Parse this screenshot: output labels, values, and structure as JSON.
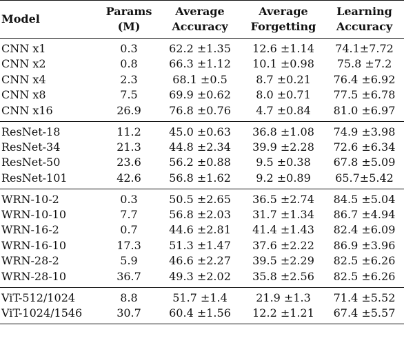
{
  "table": {
    "headers": {
      "model": "Model",
      "params_line1": "Params",
      "params_line2": "(M)",
      "acc_line1": "Average",
      "acc_line2": "Accuracy",
      "forg_line1": "Average",
      "forg_line2": "Forgetting",
      "learn_line1": "Learning",
      "learn_line2": "Accuracy"
    },
    "groups": [
      {
        "rows": [
          {
            "model": "CNN x1",
            "params": "0.3",
            "acc": "62.2 ±1.35",
            "forg": "12.6 ±1.14",
            "learn": "74.1±7.72"
          },
          {
            "model": "CNN x2",
            "params": "0.8",
            "acc": "66.3 ±1.12",
            "forg": "10.1 ±0.98",
            "learn": "75.8 ±7.2"
          },
          {
            "model": "CNN x4",
            "params": "2.3",
            "acc": "68.1 ±0.5",
            "forg": "8.7 ±0.21",
            "learn": "76.4 ±6.92"
          },
          {
            "model": "CNN x8",
            "params": "7.5",
            "acc": "69.9 ±0.62",
            "forg": "8.0 ±0.71",
            "learn": "77.5 ±6.78"
          },
          {
            "model": "CNN x16",
            "params": "26.9",
            "acc": "76.8 ±0.76",
            "forg": "4.7 ±0.84",
            "learn": "81.0 ±6.97"
          }
        ]
      },
      {
        "rows": [
          {
            "model": "ResNet-18",
            "params": "11.2",
            "acc": "45.0 ±0.63",
            "forg": "36.8 ±1.08",
            "learn": "74.9 ±3.98"
          },
          {
            "model": "ResNet-34",
            "params": "21.3",
            "acc": "44.8 ±2.34",
            "forg": "39.9 ±2.28",
            "learn": "72.6 ±6.34"
          },
          {
            "model": "ResNet-50",
            "params": "23.6",
            "acc": "56.2 ±0.88",
            "forg": "9.5 ±0.38",
            "learn": "67.8 ±5.09"
          },
          {
            "model": "ResNet-101",
            "params": "42.6",
            "acc": "56.8 ±1.62",
            "forg": "9.2 ±0.89",
            "learn": "65.7±5.42"
          }
        ]
      },
      {
        "rows": [
          {
            "model": "WRN-10-2",
            "params": "0.3",
            "acc": "50.5 ±2.65",
            "forg": "36.5 ±2.74",
            "learn": "84.5 ±5.04"
          },
          {
            "model": "WRN-10-10",
            "params": "7.7",
            "acc": "56.8 ±2.03",
            "forg": "31.7 ±1.34",
            "learn": "86.7 ±4.94"
          },
          {
            "model": "WRN-16-2",
            "params": "0.7",
            "acc": "44.6 ±2.81",
            "forg": "41.4 ±1.43",
            "learn": "82.4 ±6.09"
          },
          {
            "model": "WRN-16-10",
            "params": "17.3",
            "acc": "51.3 ±1.47",
            "forg": "37.6 ±2.22",
            "learn": "86.9 ±3.96"
          },
          {
            "model": "WRN-28-2",
            "params": "5.9",
            "acc": "46.6 ±2.27",
            "forg": "39.5 ±2.29",
            "learn": "82.5 ±6.26"
          },
          {
            "model": "WRN-28-10",
            "params": "36.7",
            "acc": "49.3 ±2.02",
            "forg": "35.8 ±2.56",
            "learn": "82.5 ±6.26"
          }
        ]
      },
      {
        "rows": [
          {
            "model": "ViT-512/1024",
            "params": "8.8",
            "acc": "51.7 ±1.4",
            "forg": "21.9 ±1.3",
            "learn": "71.4 ±5.52"
          },
          {
            "model": "ViT-1024/1546",
            "params": "30.7",
            "acc": "60.4 ±1.56",
            "forg": "12.2 ±1.21",
            "learn": "67.4 ±5.57"
          }
        ]
      }
    ]
  }
}
